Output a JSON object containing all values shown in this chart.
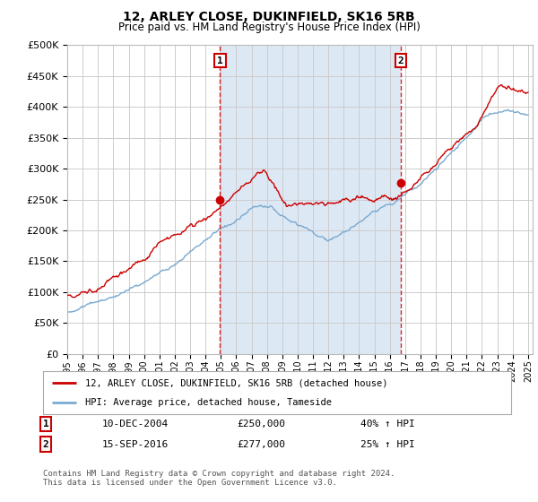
{
  "title": "12, ARLEY CLOSE, DUKINFIELD, SK16 5RB",
  "subtitle": "Price paid vs. HM Land Registry's House Price Index (HPI)",
  "plot_bg_color": "#ffffff",
  "highlight_color": "#dde8f5",
  "red_line_label": "12, ARLEY CLOSE, DUKINFIELD, SK16 5RB (detached house)",
  "blue_line_label": "HPI: Average price, detached house, Tameside",
  "sale1_date": "10-DEC-2004",
  "sale1_price": "£250,000",
  "sale1_hpi": "40% ↑ HPI",
  "sale1_year": 2004.95,
  "sale1_value": 250000,
  "sale2_date": "15-SEP-2016",
  "sale2_price": "£277,000",
  "sale2_hpi": "25% ↑ HPI",
  "sale2_year": 2016.71,
  "sale2_value": 277000,
  "ylim": [
    0,
    500000
  ],
  "yticks": [
    0,
    50000,
    100000,
    150000,
    200000,
    250000,
    300000,
    350000,
    400000,
    450000,
    500000
  ],
  "footer": "Contains HM Land Registry data © Crown copyright and database right 2024.\nThis data is licensed under the Open Government Licence v3.0.",
  "red_color": "#cc0000",
  "blue_color": "#7aaad0",
  "grid_color": "#cccccc"
}
